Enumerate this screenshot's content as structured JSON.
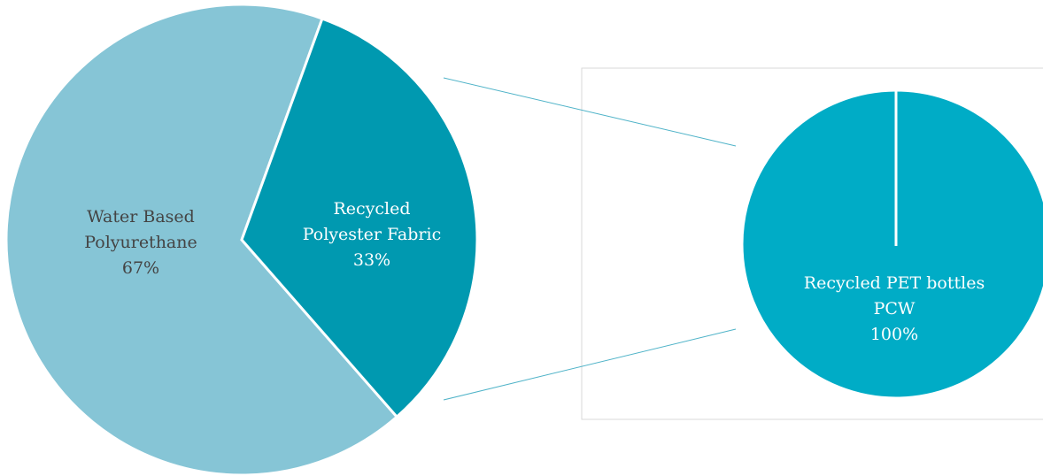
{
  "chart_data": [
    {
      "type": "pie",
      "categories": [
        "Water Based Polyurethane",
        "Recycled Polyester Fabric"
      ],
      "values": [
        67,
        33
      ],
      "data_labels": [
        [
          "Water Based",
          "Polyurethane",
          "67%"
        ],
        [
          "Recycled",
          "Polyester Fabric",
          "33%"
        ]
      ],
      "colors": [
        "#86c5d6",
        "#0099b0"
      ],
      "label_colors": [
        "#444444",
        "#ffffff"
      ],
      "exploded_slice": "Recycled Polyester Fabric"
    },
    {
      "type": "pie",
      "categories": [
        "Recycled PET bottles PCW"
      ],
      "values": [
        100
      ],
      "data_labels": [
        [
          "Recycled PET bottles",
          "PCW",
          "100%"
        ]
      ],
      "colors": [
        "#00acc6"
      ],
      "label_colors": [
        "#ffffff"
      ]
    }
  ],
  "connector_color": "#4fb3c8",
  "frame_color": "#d9d9d9"
}
